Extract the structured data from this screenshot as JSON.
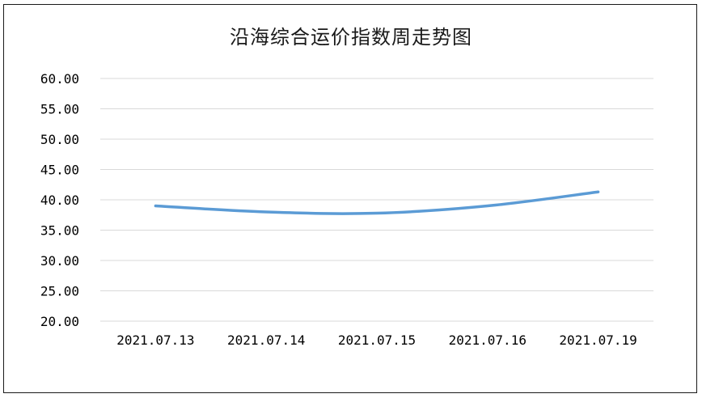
{
  "chart_data": {
    "type": "line",
    "title": "沿海综合运价指数周走势图",
    "categories": [
      "2021.07.13",
      "2021.07.14",
      "2021.07.15",
      "2021.07.16",
      "2021.07.19"
    ],
    "series": [
      {
        "values": [
          39.0,
          38.0,
          37.8,
          39.0,
          41.3
        ]
      }
    ],
    "ylim": [
      20,
      60
    ],
    "yticks": [
      "20.00",
      "25.00",
      "30.00",
      "35.00",
      "40.00",
      "45.00",
      "50.00",
      "55.00",
      "60.00"
    ],
    "grid": true,
    "legend": "none",
    "colors": {
      "line": "#5b9bd5",
      "grid": "#d9d9d9",
      "text": "#000000"
    }
  }
}
